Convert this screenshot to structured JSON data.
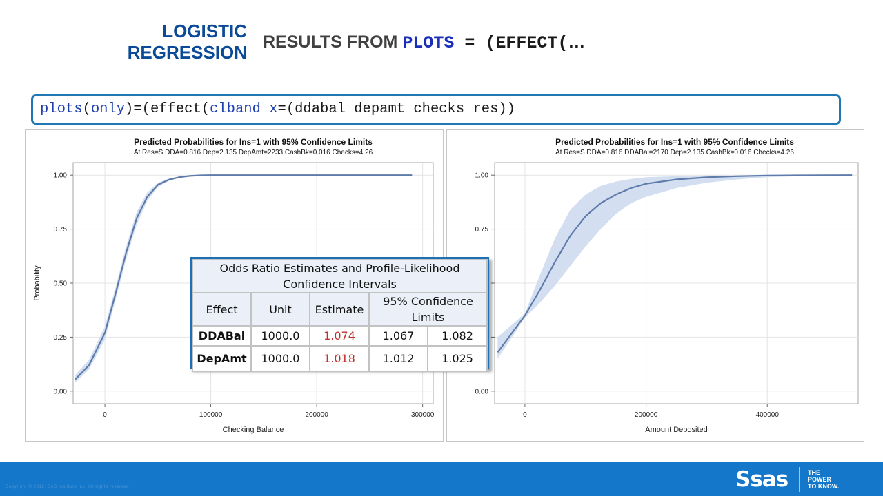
{
  "header": {
    "section_line1": "LOGISTIC",
    "section_line2": "REGRESSION",
    "title_plain": "RESULTS FROM ",
    "title_code1": "PLOTS",
    "title_code2": " = (EFFECT(",
    "title_ellipsis": "…"
  },
  "code": {
    "kw1": "plots",
    "t1": "(",
    "kw2": "only",
    "t2": ")=(effect(",
    "kw3": "clband",
    "t3": " ",
    "kw4": "x",
    "t4": "=(ddabal depamt checks res))"
  },
  "chart_data": [
    {
      "type": "line",
      "title": "Predicted Probabilities for Ins=1 with 95% Confidence Limits",
      "subtitle": "At Res=S DDA=0.816 Dep=2.135 DepAmt=2233 CashBk=0.016 Checks=4.26",
      "xlabel": "Checking Balance",
      "ylabel": "Probability",
      "xlim": [
        -30000,
        310000
      ],
      "ylim": [
        0.0,
        1.0
      ],
      "xticks": [
        0,
        100000,
        200000,
        300000
      ],
      "xtick_labels": [
        "0",
        "100000",
        "200000",
        "300000"
      ],
      "yticks": [
        0.0,
        0.25,
        0.5,
        0.75,
        1.0
      ],
      "ytick_labels": [
        "0.00",
        "0.25",
        "0.50",
        "0.75",
        "1.00"
      ],
      "grid": true,
      "series": [
        {
          "x": [
            -28000,
            -15000,
            0,
            10000,
            20000,
            30000,
            40000,
            50000,
            60000,
            70000,
            80000,
            90000,
            100000,
            150000,
            200000,
            250000,
            290000
          ],
          "y": [
            0.055,
            0.12,
            0.27,
            0.45,
            0.64,
            0.8,
            0.9,
            0.955,
            0.978,
            0.99,
            0.996,
            0.999,
            1.0,
            1.0,
            1.0,
            1.0,
            1.0
          ],
          "lower": [
            0.04,
            0.1,
            0.24,
            0.42,
            0.61,
            0.77,
            0.88,
            0.945,
            0.972,
            0.987,
            0.995,
            0.998,
            1.0,
            1.0,
            1.0,
            1.0,
            1.0
          ],
          "upper": [
            0.075,
            0.145,
            0.3,
            0.48,
            0.67,
            0.83,
            0.92,
            0.965,
            0.984,
            0.993,
            0.997,
            1.0,
            1.0,
            1.0,
            1.0,
            1.0,
            1.0
          ]
        }
      ],
      "colors": {
        "line": "#5e7bab",
        "band": "#d3dff0"
      }
    },
    {
      "type": "line",
      "title": "Predicted Probabilities for Ins=1 with 95% Confidence Limits",
      "subtitle": "At Res=S DDA=0.816 DDABal=2170 Dep=2.135 CashBk=0.016 Checks=4.26",
      "xlabel": "Amount Deposited",
      "ylabel": "",
      "xlim": [
        -50000,
        550000
      ],
      "ylim": [
        0.0,
        1.0
      ],
      "xticks": [
        0,
        200000,
        400000
      ],
      "xtick_labels": [
        "0",
        "200000",
        "400000"
      ],
      "yticks": [
        0.0,
        0.25,
        0.5,
        0.75,
        1.0
      ],
      "ytick_labels": [
        "0.00",
        "0.25",
        "0.50",
        "0.75",
        "1.00"
      ],
      "grid": true,
      "series": [
        {
          "x": [
            -45000,
            0,
            25000,
            50000,
            75000,
            100000,
            125000,
            150000,
            175000,
            200000,
            250000,
            300000,
            350000,
            400000,
            450000,
            540000
          ],
          "y": [
            0.18,
            0.35,
            0.47,
            0.6,
            0.72,
            0.81,
            0.87,
            0.91,
            0.94,
            0.96,
            0.98,
            0.99,
            0.995,
            0.998,
            0.999,
            1.0
          ],
          "lower": [
            0.15,
            0.34,
            0.41,
            0.49,
            0.58,
            0.67,
            0.75,
            0.82,
            0.87,
            0.9,
            0.94,
            0.965,
            0.98,
            0.99,
            0.995,
            0.999
          ],
          "upper": [
            0.25,
            0.36,
            0.54,
            0.71,
            0.84,
            0.91,
            0.95,
            0.97,
            0.982,
            0.99,
            0.995,
            0.998,
            0.999,
            1.0,
            1.0,
            1.0
          ]
        }
      ],
      "colors": {
        "line": "#5e7bab",
        "band": "#d3dff0"
      }
    }
  ],
  "odds_table": {
    "caption": "Odds Ratio Estimates and Profile-Likelihood Confidence Intervals",
    "headers": [
      "Effect",
      "Unit",
      "Estimate",
      "95% Confidence Limits"
    ],
    "rows": [
      {
        "effect": "DDABal",
        "unit": "1000.0",
        "estimate": "1.074",
        "lower": "1.067",
        "upper": "1.082"
      },
      {
        "effect": "DepAmt",
        "unit": "1000.0",
        "estimate": "1.018",
        "lower": "1.012",
        "upper": "1.025"
      }
    ],
    "colors": {
      "estimate": "#c0302c",
      "border": "#1d6fb8",
      "header_bg": "#ebf0f8"
    }
  },
  "footer": {
    "copyright": "Copyright © 2012, SAS Institute Inc. All rights reserved.",
    "logo": "Ssas",
    "tagline_1": "THE",
    "tagline_2": "POWER",
    "tagline_3": "TO KNOW."
  },
  "colors": {
    "accent": "#0b4a96",
    "footer": "#1477c9",
    "code_border": "#1f78b4",
    "keyword": "#1f3fb0"
  }
}
